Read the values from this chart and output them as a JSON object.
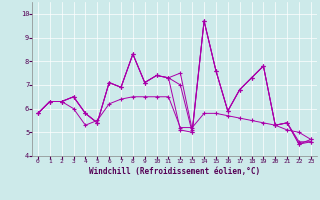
{
  "xlabel": "Windchill (Refroidissement éolien,°C)",
  "xlim": [
    -0.5,
    23.5
  ],
  "ylim": [
    4,
    10.5
  ],
  "xticks": [
    0,
    1,
    2,
    3,
    4,
    5,
    6,
    7,
    8,
    9,
    10,
    11,
    12,
    13,
    14,
    15,
    16,
    17,
    18,
    19,
    20,
    21,
    22,
    23
  ],
  "yticks": [
    4,
    5,
    6,
    7,
    8,
    9,
    10
  ],
  "bg_color": "#cdeaea",
  "line_color": "#aa00aa",
  "series": [
    [
      5.8,
      6.3,
      6.3,
      6.5,
      5.8,
      5.4,
      7.1,
      6.9,
      8.3,
      7.1,
      7.4,
      7.3,
      7.5,
      5.1,
      9.7,
      7.6,
      5.9,
      6.8,
      7.3,
      7.8,
      5.3,
      5.4,
      4.6,
      4.6
    ],
    [
      5.8,
      6.3,
      6.3,
      6.5,
      5.8,
      5.4,
      7.1,
      6.9,
      8.3,
      7.1,
      7.4,
      7.3,
      7.0,
      5.0,
      9.7,
      7.6,
      5.9,
      6.8,
      7.3,
      7.8,
      5.3,
      5.4,
      4.5,
      4.7
    ],
    [
      5.8,
      6.3,
      6.3,
      6.5,
      5.8,
      5.4,
      7.1,
      6.9,
      8.3,
      7.1,
      7.4,
      7.3,
      5.1,
      5.0,
      9.7,
      7.6,
      5.9,
      6.8,
      7.3,
      7.8,
      5.3,
      5.4,
      4.5,
      4.6
    ],
    [
      5.8,
      6.3,
      6.3,
      6.0,
      5.3,
      5.5,
      6.2,
      6.4,
      6.5,
      6.5,
      6.5,
      6.5,
      5.2,
      5.2,
      5.8,
      5.8,
      5.7,
      5.6,
      5.5,
      5.4,
      5.3,
      5.1,
      5.0,
      4.7
    ]
  ]
}
